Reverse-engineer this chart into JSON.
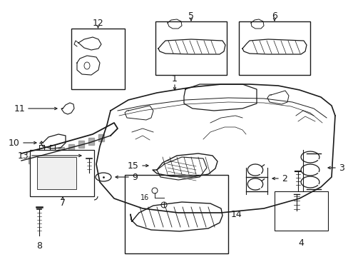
{
  "bg_color": "#ffffff",
  "line_color": "#1a1a1a",
  "fig_width": 4.89,
  "fig_height": 3.6,
  "dpi": 100,
  "label_fontsize": 9,
  "label_fontsize_sm": 7
}
